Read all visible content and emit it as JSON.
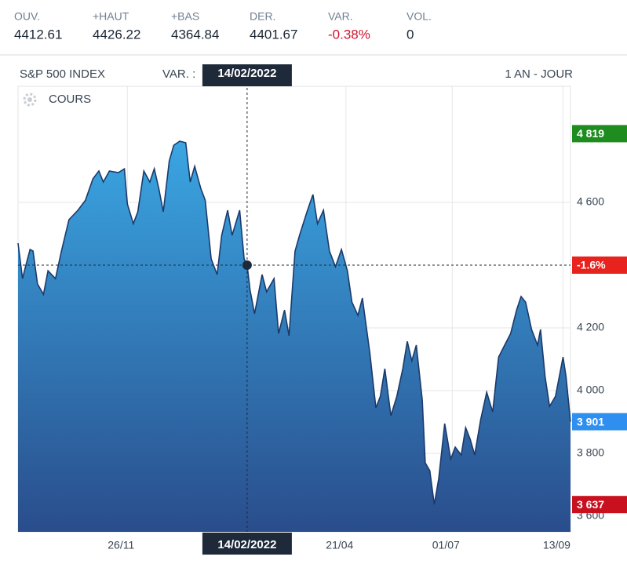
{
  "header": {
    "stats": [
      {
        "label": "OUV.",
        "value": 4412.61
      },
      {
        "label": "+HAUT",
        "value": 4426.22
      },
      {
        "label": "+BAS",
        "value": 4364.84
      },
      {
        "label": "DER.",
        "value": 4401.67
      },
      {
        "label": "VAR.",
        "value": -0.38,
        "value_label": "-0.38%",
        "color": "#d0142c"
      },
      {
        "label": "VOL.",
        "value": 0
      }
    ]
  },
  "chart_data": {
    "type": "area",
    "title": "S&P 500 INDEX",
    "var_label": "VAR. :",
    "period": "1 AN - JOUR",
    "series_label": "COURS",
    "line_color": "#1b3a6b",
    "fill_top": "#3aa6e2",
    "fill_bottom": "#2a4d8c",
    "x": [
      0,
      3,
      5,
      8,
      10,
      13,
      17,
      20,
      25,
      29,
      34,
      40,
      45,
      50,
      54,
      57,
      61,
      67,
      71,
      73,
      77,
      80,
      84,
      88,
      91,
      94,
      97,
      101,
      104,
      108,
      112,
      115,
      118,
      122,
      125,
      129,
      133,
      136,
      140,
      143,
      148,
      151,
      153,
      155,
      158,
      163,
      166,
      171,
      174,
      178,
      181,
      185,
      188,
      193,
      197,
      200,
      204,
      208,
      212,
      216,
      220,
      223,
      227,
      230,
      235,
      239,
      242,
      245,
      249,
      253,
      257,
      260,
      263,
      266,
      270,
      272,
      275,
      278,
      281,
      285,
      289,
      292,
      296,
      299,
      302,
      305,
      309,
      313,
      317,
      321,
      325,
      329,
      333,
      336,
      339,
      343,
      347,
      349,
      352,
      355,
      359,
      364,
      366,
      369
    ],
    "values": [
      4470,
      4357,
      4395,
      4450,
      4445,
      4340,
      4307,
      4382,
      4357,
      4445,
      4545,
      4575,
      4607,
      4675,
      4700,
      4665,
      4700,
      4695,
      4707,
      4595,
      4532,
      4570,
      4700,
      4665,
      4707,
      4645,
      4570,
      4732,
      4782,
      4795,
      4790,
      4665,
      4715,
      4645,
      4607,
      4420,
      4370,
      4495,
      4575,
      4495,
      4575,
      4420,
      4400,
      4320,
      4245,
      4370,
      4315,
      4357,
      4182,
      4257,
      4175,
      4445,
      4495,
      4570,
      4625,
      4532,
      4575,
      4445,
      4395,
      4450,
      4382,
      4282,
      4240,
      4295,
      4120,
      3945,
      3982,
      4070,
      3920,
      3982,
      4070,
      4157,
      4095,
      4145,
      3970,
      3770,
      3745,
      3637,
      3720,
      3895,
      3782,
      3820,
      3795,
      3882,
      3845,
      3795,
      3907,
      3995,
      3932,
      4107,
      4145,
      4182,
      4257,
      4300,
      4282,
      4195,
      4145,
      4195,
      4045,
      3950,
      3982,
      4107,
      4045,
      3901
    ],
    "xlim": [
      0,
      369
    ],
    "xticks": [
      {
        "value": 73,
        "label": "26/11"
      },
      {
        "value": 219,
        "label": "21/04"
      },
      {
        "value": 290,
        "label": "01/07"
      },
      {
        "value": 364,
        "label": "13/09"
      }
    ],
    "ylim": [
      3550,
      4970
    ],
    "yticks": [
      {
        "value": 3600,
        "label": "3 600"
      },
      {
        "value": 3800,
        "label": "3 800"
      },
      {
        "value": 4000,
        "label": "4 000"
      },
      {
        "value": 4200,
        "label": "4 200"
      },
      {
        "value": 4600,
        "label": "4 600"
      }
    ],
    "grid": true,
    "markers": [
      {
        "value": 4819,
        "label": "4 819",
        "color": "#1e8c1e"
      },
      {
        "value": 3901,
        "label": "3 901",
        "color": "#2f8ff0"
      },
      {
        "value": 3637,
        "label": "3 637",
        "color": "#c8101e"
      }
    ],
    "crosshair": {
      "x": 153,
      "value": 4400,
      "date_label": "14/02/2022",
      "change": -1.6,
      "change_label": "-1.6%",
      "color": "#e8231e"
    }
  }
}
